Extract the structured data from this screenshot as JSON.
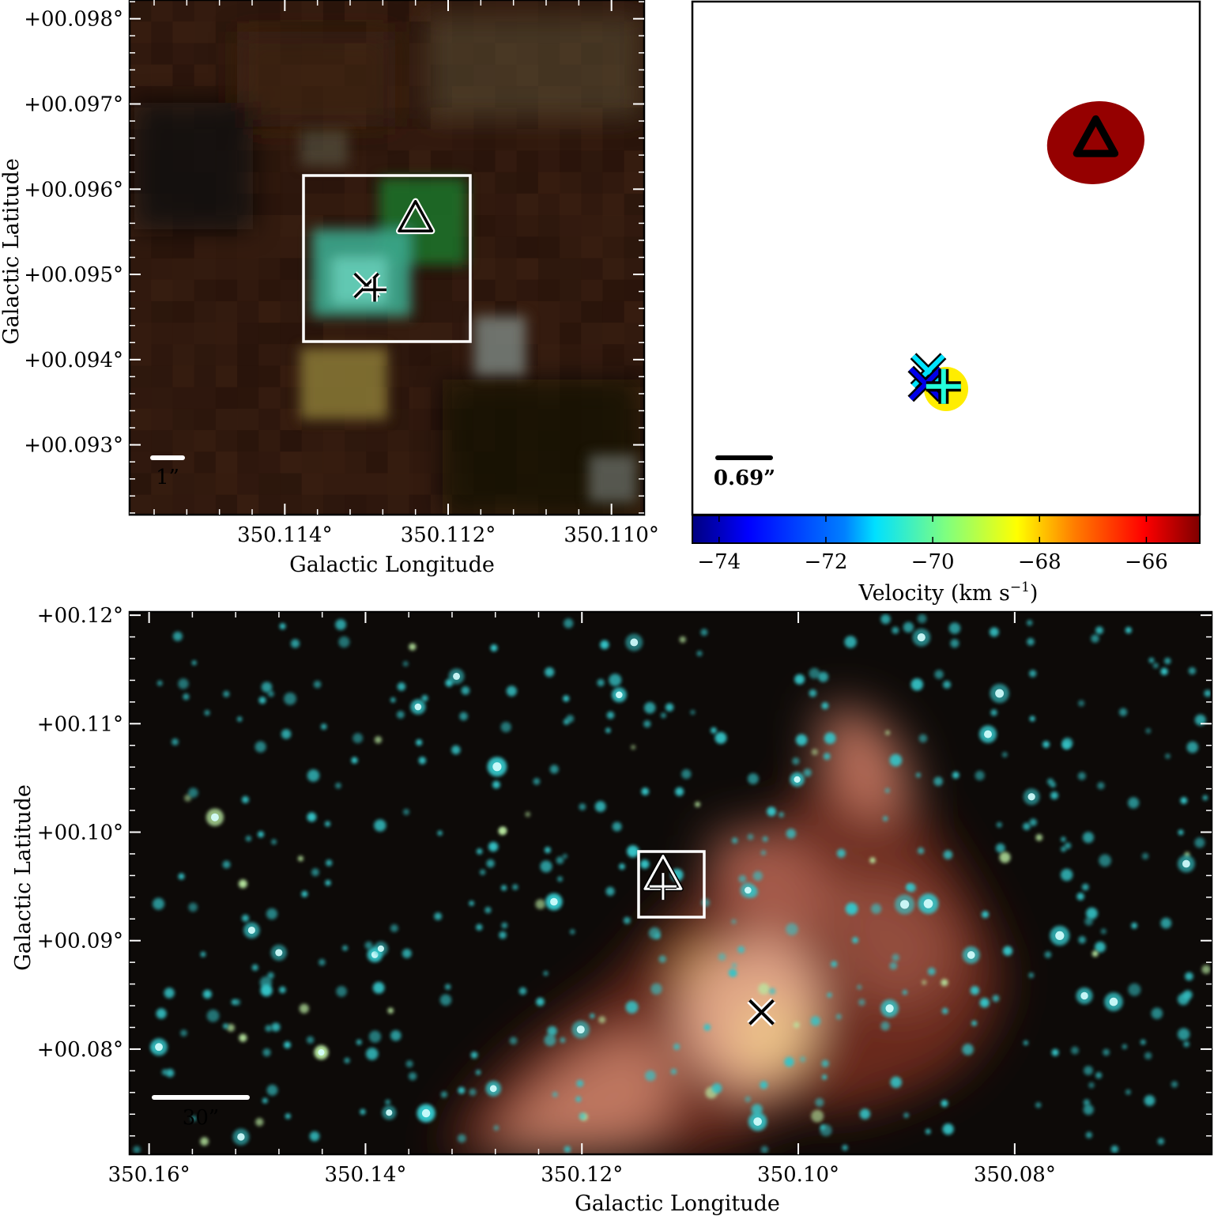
{
  "chart_data": [
    {
      "type": "image",
      "panel": "top-left",
      "xlabel": "Galactic Longitude",
      "ylabel": "Galactic Latitude",
      "xlim": [
        350.1159,
        350.1096
      ],
      "ylim": [
        0.09218,
        0.09822
      ],
      "x_ticks": [
        {
          "value": 350.114,
          "label": "350.114°"
        },
        {
          "value": 350.112,
          "label": "350.112°"
        },
        {
          "value": 350.11,
          "label": "350.110°"
        }
      ],
      "y_ticks": [
        {
          "value": 0.098,
          "label": "+00.098°"
        },
        {
          "value": 0.097,
          "label": "+00.097°"
        },
        {
          "value": 0.096,
          "label": "+00.096°"
        },
        {
          "value": 0.095,
          "label": "+00.095°"
        },
        {
          "value": 0.094,
          "label": "+00.094°"
        },
        {
          "value": 0.093,
          "label": "+00.093°"
        }
      ],
      "scale_bar_label": "1”",
      "zoom_box": {
        "l": [
          350.1137,
          350.1117
        ],
        "b": [
          0.09425,
          0.09622
        ]
      },
      "markers": [
        {
          "shape": "triangle",
          "l": 350.1124,
          "b": 0.09565
        },
        {
          "shape": "cross",
          "l": 350.113,
          "b": 0.09487
        },
        {
          "shape": "plus",
          "l": 350.1129,
          "b": 0.09482
        }
      ]
    },
    {
      "type": "scatter",
      "panel": "top-right",
      "scale_bar_label": "0.69”",
      "colorbar": {
        "label": "Velocity (km s",
        "label_exponent": "−1",
        "label_suffix": ")",
        "range": [
          -74.5,
          -65.0
        ],
        "ticks": [
          {
            "value": -74,
            "label": "−74"
          },
          {
            "value": -72,
            "label": "−72"
          },
          {
            "value": -70,
            "label": "−70"
          },
          {
            "value": -68,
            "label": "−68"
          },
          {
            "value": -66,
            "label": "−66"
          }
        ]
      },
      "points": [
        {
          "shape": "triangle",
          "velocity": -65.2,
          "fill": "#800000",
          "dx": 0.59,
          "dy": -0.45
        },
        {
          "shape": "cross",
          "velocity": -71.2,
          "dx": -0.07,
          "dy": 0.44
        },
        {
          "shape": "cross",
          "velocity": -73.5,
          "dx": -0.08,
          "dy": 0.49
        },
        {
          "shape": "plus",
          "velocity": -70.6,
          "dx": -0.01,
          "dy": 0.5
        },
        {
          "shape": "circle",
          "velocity": -68.4,
          "dx": 0.0,
          "dy": 0.51
        }
      ]
    },
    {
      "type": "image",
      "panel": "bottom",
      "xlabel": "Galactic Longitude",
      "ylabel": "Galactic Latitude",
      "xlim": [
        350.1618,
        350.0618
      ],
      "ylim": [
        0.0703,
        0.1203
      ],
      "x_ticks": [
        {
          "value": 350.16,
          "label": "350.16°"
        },
        {
          "value": 350.14,
          "label": "350.14°"
        },
        {
          "value": 350.12,
          "label": "350.12°"
        },
        {
          "value": 350.1,
          "label": "350.10°"
        },
        {
          "value": 350.08,
          "label": "350.08°"
        }
      ],
      "y_ticks": [
        {
          "value": 0.12,
          "label": "+00.12°"
        },
        {
          "value": 0.11,
          "label": "+00.11°"
        },
        {
          "value": 0.1,
          "label": "+00.10°"
        },
        {
          "value": 0.09,
          "label": "+00.09°"
        },
        {
          "value": 0.08,
          "label": "+00.08°"
        }
      ],
      "scale_bar_label": "30”",
      "zoom_box": {
        "l": [
          350.1156,
          350.1095
        ],
        "b": [
          0.0916,
          0.0977
        ]
      },
      "markers": [
        {
          "shape": "triangle",
          "l": 350.1125,
          "b": 0.096
        },
        {
          "shape": "plus",
          "l": 350.1125,
          "b": 0.095
        },
        {
          "shape": "cross",
          "l": 350.1034,
          "b": 0.0834
        }
      ]
    }
  ],
  "colors": {
    "colormap": [
      "#00007f",
      "#0000ff",
      "#007fff",
      "#00ffff",
      "#7fff7f",
      "#ffff00",
      "#ff7f00",
      "#ff0000",
      "#7f0000"
    ],
    "star": "#35c4c8",
    "nebula": "#d98a70"
  }
}
